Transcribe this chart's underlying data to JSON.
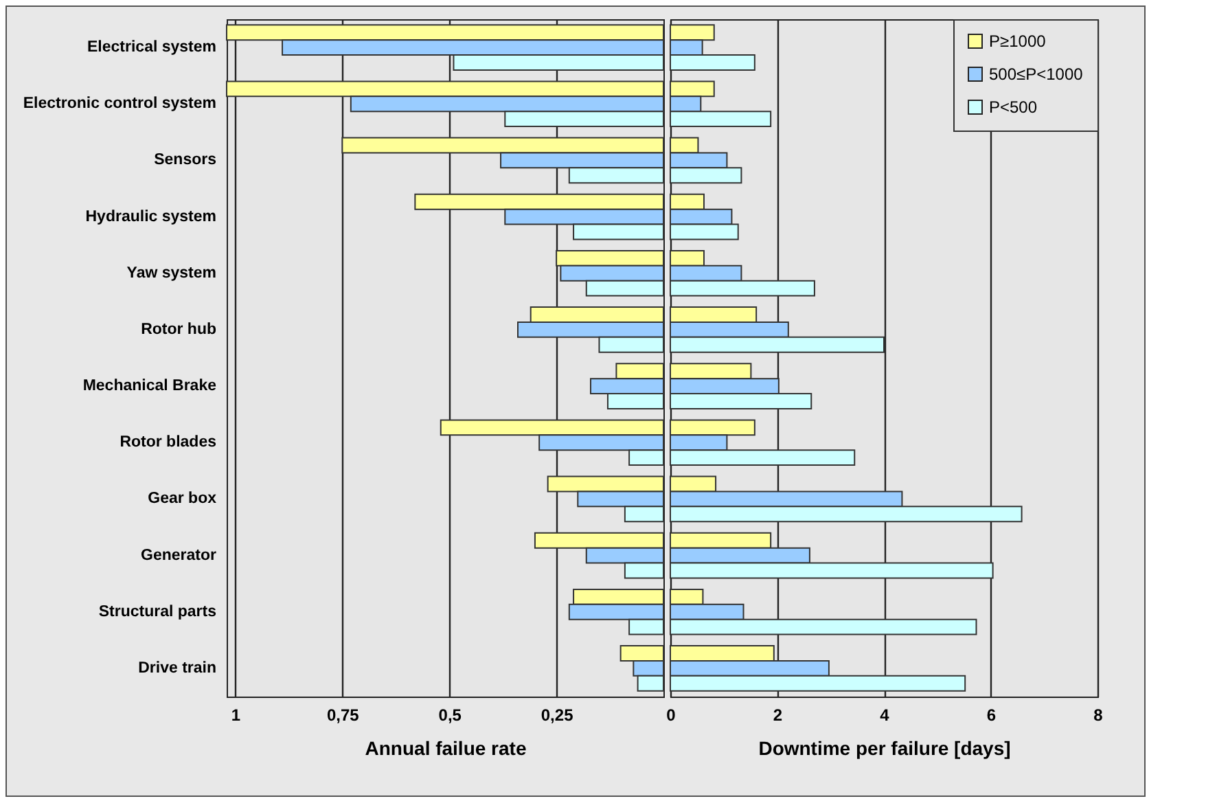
{
  "chart_data": [
    {
      "type": "bar",
      "orientation": "horizontal",
      "categories": [
        "Electrical system",
        "Electronic control system",
        "Sensors",
        "Hydraulic system",
        "Yaw system",
        "Rotor hub",
        "Mechanical Brake",
        "Rotor blades",
        "Gear box",
        "Generator",
        "Structural parts",
        "Drive train"
      ],
      "series": [
        {
          "color": "#ffff99",
          "values": [
            1.02,
            1.02,
            0.75,
            0.58,
            0.25,
            0.31,
            0.11,
            0.52,
            0.27,
            0.3,
            0.21,
            0.1
          ]
        },
        {
          "color": "#99ccff",
          "values": [
            0.89,
            0.73,
            0.38,
            0.37,
            0.24,
            0.34,
            0.17,
            0.29,
            0.2,
            0.18,
            0.22,
            0.07
          ]
        },
        {
          "color": "#ccffff",
          "values": [
            0.49,
            0.37,
            0.22,
            0.21,
            0.18,
            0.15,
            0.13,
            0.08,
            0.09,
            0.09,
            0.08,
            0.06
          ]
        }
      ],
      "xlim": [
        1.02,
        0
      ],
      "xticks": [
        1,
        {
          "value": 0.75,
          "label": "0,75"
        },
        {
          "value": 0.5,
          "label": "0,5"
        },
        {
          "value": 0.25,
          "label": "0,25"
        }
      ],
      "xlabel": "Annual failue rate",
      "grid": "x"
    },
    {
      "type": "bar",
      "orientation": "horizontal",
      "categories": [
        "Electrical system",
        "Electronic control system",
        "Sensors",
        "Hydraulic system",
        "Yaw system",
        "Rotor hub",
        "Mechanical Brake",
        "Rotor blades",
        "Gear box",
        "Generator",
        "Structural parts",
        "Drive train"
      ],
      "series": [
        {
          "name": "P≥1000",
          "color": "#ffff99",
          "values": [
            0.82,
            0.82,
            0.52,
            0.63,
            0.63,
            1.61,
            1.51,
            1.58,
            0.85,
            1.88,
            0.61,
            1.94
          ]
        },
        {
          "name": "500≤P<1000",
          "color": "#99ccff",
          "values": [
            0.6,
            0.57,
            1.06,
            1.15,
            1.33,
            2.21,
            2.03,
            1.06,
            4.34,
            2.61,
            1.37,
            2.97
          ]
        },
        {
          "name": "P<500",
          "color": "#ccffff",
          "values": [
            1.58,
            1.88,
            1.33,
            1.27,
            2.7,
            4.0,
            2.64,
            3.45,
            6.58,
            6.04,
            5.73,
            5.52
          ]
        }
      ],
      "xlim": [
        0,
        8
      ],
      "xticks": [
        0,
        2,
        4,
        6,
        8
      ],
      "xlabel": "Downtime per failure [days]",
      "grid": "x",
      "legend": "top right",
      "tick_labels": "x"
    }
  ]
}
